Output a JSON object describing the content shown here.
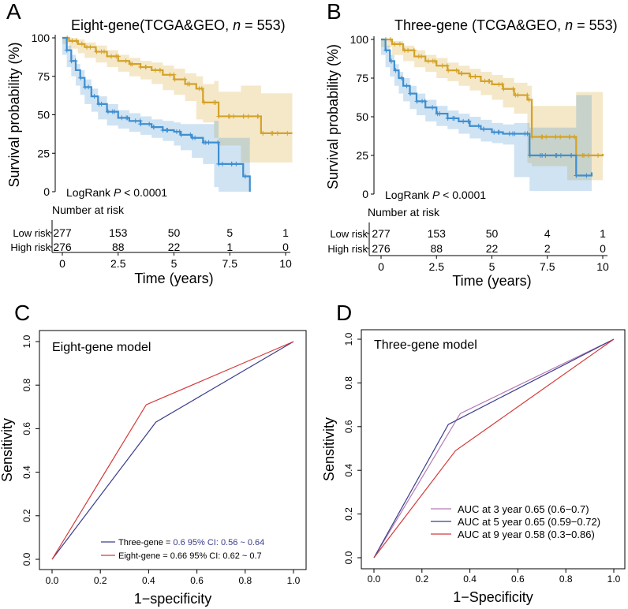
{
  "colors": {
    "low_risk": "#D4A227",
    "high_risk": "#3E8ED0",
    "roc_blue": "#3B3D8C",
    "roc_red": "#D33A3A",
    "roc_pink": "#B57AB4",
    "axis": "#000000"
  },
  "chart_data": [
    {
      "panel": "A",
      "type": "line",
      "title_main": "Eight-gene(TCGA&GEO, ",
      "title_n": "n",
      "title_rest": " = 553)",
      "ylabel": "Survival probability (%)",
      "xlabel": "Time (years)",
      "xlim": [
        0,
        10
      ],
      "ylim": [
        0,
        100
      ],
      "x_ticks": [
        "0",
        "2.5",
        "5",
        "7.5",
        "10"
      ],
      "y_ticks": [
        "0",
        "25",
        "50",
        "75",
        "100"
      ],
      "logrank_label": "LogRank",
      "p_label": "P",
      "p_value": " < 0.0001",
      "risk_table": {
        "title": "Number at risk",
        "groups": [
          {
            "name": "Low risk",
            "counts": [
              "277",
              "153",
              "50",
              "5",
              "1"
            ]
          },
          {
            "name": "High risk",
            "counts": [
              "276",
              "88",
              "22",
              "1",
              "0"
            ]
          }
        ]
      },
      "series": [
        {
          "name": "Low risk",
          "x": [
            0,
            0.3,
            0.7,
            1.0,
            1.5,
            2.0,
            2.5,
            3.0,
            3.5,
            4.0,
            4.5,
            5.0,
            5.5,
            6.0,
            6.3,
            6.8,
            7.0,
            8.0,
            8.9,
            10.3
          ],
          "y": [
            100,
            98,
            96,
            94,
            91,
            88,
            85,
            83,
            81,
            79,
            76,
            73,
            70,
            67,
            58,
            58,
            49,
            49,
            38,
            38
          ],
          "lower": [
            100,
            96,
            93,
            90,
            87,
            84,
            81,
            78,
            75,
            73,
            70,
            66,
            63,
            59,
            47,
            45,
            35,
            30,
            19,
            19
          ],
          "upper": [
            100,
            100,
            99,
            97,
            95,
            92,
            89,
            87,
            85,
            84,
            82,
            80,
            77,
            75,
            70,
            72,
            65,
            69,
            64,
            64
          ]
        },
        {
          "name": "High risk",
          "x": [
            0,
            0.2,
            0.4,
            0.6,
            0.8,
            1.0,
            1.3,
            1.6,
            2.0,
            2.5,
            3.0,
            3.5,
            4.0,
            4.5,
            5.0,
            5.3,
            5.8,
            6.3,
            6.8,
            7.0,
            8.1,
            8.4
          ],
          "y": [
            100,
            92,
            85,
            79,
            74,
            68,
            62,
            57,
            52,
            48,
            46,
            44,
            42,
            40,
            39,
            37,
            35,
            32,
            32,
            18,
            10,
            0
          ],
          "lower": [
            100,
            89,
            81,
            75,
            69,
            63,
            57,
            52,
            47,
            43,
            41,
            39,
            37,
            35,
            33,
            30,
            27,
            22,
            18,
            3,
            0,
            0
          ],
          "upper": [
            100,
            95,
            89,
            83,
            79,
            73,
            67,
            62,
            57,
            53,
            51,
            49,
            47,
            46,
            45,
            44,
            44,
            44,
            46,
            35,
            35,
            35
          ]
        }
      ]
    },
    {
      "panel": "B",
      "type": "line",
      "title_main": "Three-gene (TCGA&GEO, ",
      "title_n": "n",
      "title_rest": " = 553)",
      "ylabel": "Survival probability (%)",
      "xlabel": "Time (years)",
      "xlim": [
        0,
        10
      ],
      "ylim": [
        0,
        100
      ],
      "x_ticks": [
        "0",
        "2.5",
        "5",
        "7.5",
        "10"
      ],
      "y_ticks": [
        "0",
        "25",
        "50",
        "75",
        "100"
      ],
      "logrank_label": "LogRank",
      "p_label": "P",
      "p_value": " < 0.0001",
      "risk_table": {
        "title": "Number at risk",
        "groups": [
          {
            "name": "Low risk",
            "counts": [
              "277",
              "153",
              "50",
              "4",
              "1"
            ]
          },
          {
            "name": "High risk",
            "counts": [
              "276",
              "88",
              "22",
              "2",
              "0"
            ]
          }
        ]
      },
      "series": [
        {
          "name": "Low risk",
          "x": [
            0,
            0.5,
            1.0,
            1.5,
            2.0,
            2.5,
            3.0,
            3.5,
            4.0,
            4.5,
            5.0,
            5.5,
            6.0,
            6.6,
            6.8,
            8.4,
            8.8,
            9.6,
            10.0
          ],
          "y": [
            100,
            97,
            93,
            89,
            86,
            83,
            80,
            78,
            76,
            73,
            71,
            68,
            64,
            61,
            37,
            37,
            25,
            25,
            26
          ],
          "lower": [
            100,
            95,
            90,
            86,
            82,
            79,
            75,
            73,
            70,
            67,
            64,
            61,
            56,
            52,
            20,
            18,
            9,
            9,
            9
          ],
          "upper": [
            100,
            99,
            96,
            93,
            90,
            88,
            85,
            83,
            81,
            79,
            77,
            75,
            72,
            70,
            57,
            57,
            66,
            66,
            66
          ]
        },
        {
          "name": "High risk",
          "x": [
            0,
            0.2,
            0.4,
            0.6,
            0.8,
            1.0,
            1.3,
            1.6,
            2.0,
            2.5,
            3.0,
            3.5,
            4.0,
            4.5,
            5.0,
            5.5,
            6.0,
            6.7,
            8.8,
            9.1,
            9.5
          ],
          "y": [
            100,
            93,
            86,
            80,
            75,
            70,
            65,
            60,
            56,
            52,
            49,
            47,
            44,
            42,
            40,
            39,
            39,
            25,
            12,
            12,
            14
          ],
          "lower": [
            100,
            90,
            82,
            76,
            70,
            65,
            60,
            55,
            51,
            47,
            44,
            42,
            39,
            36,
            34,
            33,
            32,
            11,
            2,
            2,
            2
          ],
          "upper": [
            100,
            96,
            90,
            84,
            79,
            75,
            70,
            65,
            61,
            57,
            54,
            52,
            50,
            48,
            46,
            45,
            46,
            43,
            64,
            64,
            64
          ]
        }
      ]
    },
    {
      "panel": "C",
      "type": "line",
      "subtype": "roc",
      "inset_title": "Eight-gene model",
      "xlabel": "1−specificity",
      "ylabel": "Sensitivity",
      "xlim": [
        0,
        1
      ],
      "ylim": [
        0,
        1
      ],
      "x_ticks": [
        "0.0",
        "0.2",
        "0.4",
        "0.6",
        "0.8",
        "1.0"
      ],
      "y_ticks": [
        "0.0",
        "0.2",
        "0.4",
        "0.6",
        "0.8",
        "1.0"
      ],
      "series": [
        {
          "name": "Three-gene",
          "color_key": "roc_blue",
          "x": [
            0,
            0.43,
            1
          ],
          "y": [
            0,
            0.63,
            1
          ],
          "legend_prefix": "Three-gene = ",
          "legend_value": " 0.6   95% CI: 0.56 ~ 0.64"
        },
        {
          "name": "Eight-gene",
          "color_key": "roc_red",
          "x": [
            0,
            0.39,
            1
          ],
          "y": [
            0,
            0.71,
            1
          ],
          "legend_prefix": "Eight-gene = ",
          "legend_value": "0.66   95% CI: 0.62 ~ 0.7"
        }
      ]
    },
    {
      "panel": "D",
      "type": "line",
      "subtype": "roc",
      "inset_title": "Three-gene model",
      "xlabel": "1−Specificity",
      "ylabel": "Sensitivity",
      "xlim": [
        0,
        1
      ],
      "ylim": [
        0,
        1
      ],
      "x_ticks": [
        "0.0",
        "0.2",
        "0.4",
        "0.6",
        "0.8",
        "1.0"
      ],
      "y_ticks": [
        "0.0",
        "0.2",
        "0.4",
        "0.6",
        "0.8",
        "1.0"
      ],
      "series": [
        {
          "name": "AUC at 3 year 0.65 (0.6−0.7)",
          "color_key": "roc_pink",
          "x": [
            0,
            0.36,
            1
          ],
          "y": [
            0,
            0.66,
            1
          ]
        },
        {
          "name": "AUC at 5 year 0.65 (0.59−0.72)",
          "color_key": "roc_blue",
          "x": [
            0,
            0.31,
            1
          ],
          "y": [
            0,
            0.61,
            1
          ]
        },
        {
          "name": "AUC at 9 year 0.58 (0.3−0.86)",
          "color_key": "roc_red",
          "x": [
            0,
            0.34,
            1
          ],
          "y": [
            0,
            0.49,
            1
          ]
        }
      ]
    }
  ],
  "panel_labels": [
    "A",
    "B",
    "C",
    "D"
  ]
}
